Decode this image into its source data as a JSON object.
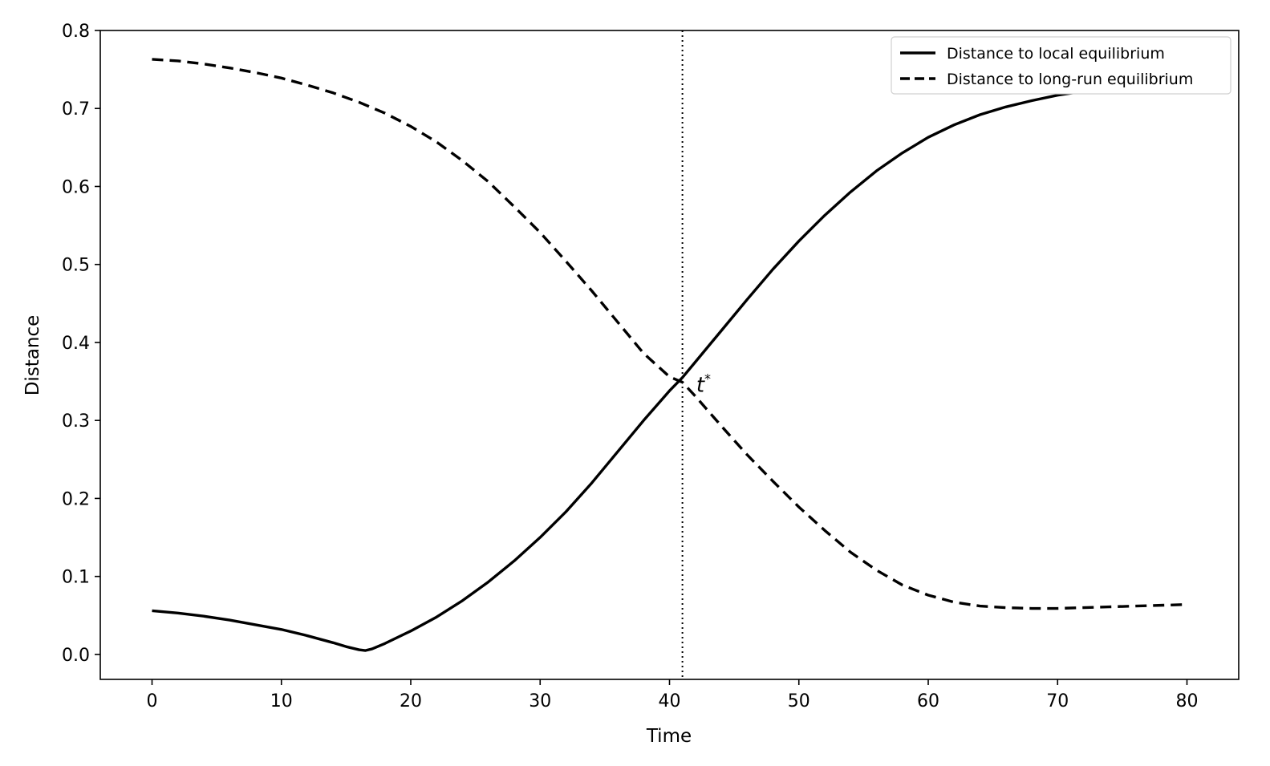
{
  "chart_data": {
    "type": "line",
    "xlabel": "Time",
    "ylabel": "Distance",
    "xlim": [
      -4,
      84
    ],
    "ylim": [
      -0.032,
      0.8
    ],
    "xticks": [
      0,
      10,
      20,
      30,
      40,
      50,
      60,
      70,
      80
    ],
    "xtick_labels": [
      "0",
      "10",
      "20",
      "30",
      "40",
      "50",
      "60",
      "70",
      "80"
    ],
    "yticks": [
      0.0,
      0.1,
      0.2,
      0.3,
      0.4,
      0.5,
      0.6,
      0.7,
      0.8
    ],
    "ytick_labels": [
      "0.0",
      "0.1",
      "0.2",
      "0.3",
      "0.4",
      "0.5",
      "0.6",
      "0.7",
      "0.8"
    ],
    "grid": false,
    "legend_position": "top-right",
    "series": [
      {
        "name": "Distance to local equilibrium",
        "style": "solid",
        "color": "#000000",
        "x": [
          0,
          2,
          4,
          6,
          8,
          10,
          12,
          14,
          15,
          16,
          16.5,
          17,
          18,
          20,
          22,
          24,
          26,
          28,
          30,
          32,
          34,
          36,
          38,
          40,
          41,
          42,
          44,
          46,
          48,
          50,
          52,
          54,
          56,
          58,
          60,
          62,
          64,
          66,
          68,
          70,
          72,
          74,
          76,
          78,
          80
        ],
        "y": [
          0.056,
          0.053,
          0.049,
          0.044,
          0.038,
          0.032,
          0.024,
          0.015,
          0.01,
          0.006,
          0.005,
          0.007,
          0.014,
          0.03,
          0.048,
          0.069,
          0.093,
          0.12,
          0.15,
          0.183,
          0.22,
          0.26,
          0.3,
          0.338,
          0.355,
          0.375,
          0.415,
          0.455,
          0.494,
          0.53,
          0.563,
          0.593,
          0.62,
          0.643,
          0.663,
          0.679,
          0.692,
          0.702,
          0.71,
          0.717,
          0.722,
          0.726,
          0.729,
          0.731,
          0.733
        ]
      },
      {
        "name": "Distance to long-run equilibrium",
        "style": "dashed",
        "color": "#000000",
        "x": [
          0,
          2,
          4,
          6,
          8,
          10,
          12,
          14,
          16,
          18,
          20,
          22,
          24,
          26,
          28,
          30,
          32,
          34,
          36,
          38,
          40,
          41,
          42,
          44,
          46,
          48,
          50,
          52,
          54,
          56,
          58,
          60,
          62,
          64,
          66,
          68,
          70,
          72,
          74,
          76,
          78,
          80
        ],
        "y": [
          0.763,
          0.761,
          0.757,
          0.752,
          0.746,
          0.739,
          0.73,
          0.72,
          0.708,
          0.694,
          0.677,
          0.657,
          0.633,
          0.606,
          0.574,
          0.541,
          0.504,
          0.466,
          0.426,
          0.386,
          0.356,
          0.349,
          0.331,
          0.293,
          0.256,
          0.222,
          0.189,
          0.159,
          0.131,
          0.108,
          0.089,
          0.076,
          0.067,
          0.062,
          0.06,
          0.059,
          0.059,
          0.06,
          0.061,
          0.062,
          0.063,
          0.064
        ]
      }
    ],
    "vline": {
      "x": 41,
      "style": "dotted"
    },
    "annotation": {
      "text": "t",
      "superscript": "*",
      "x": 41.2,
      "y": 0.35
    }
  }
}
